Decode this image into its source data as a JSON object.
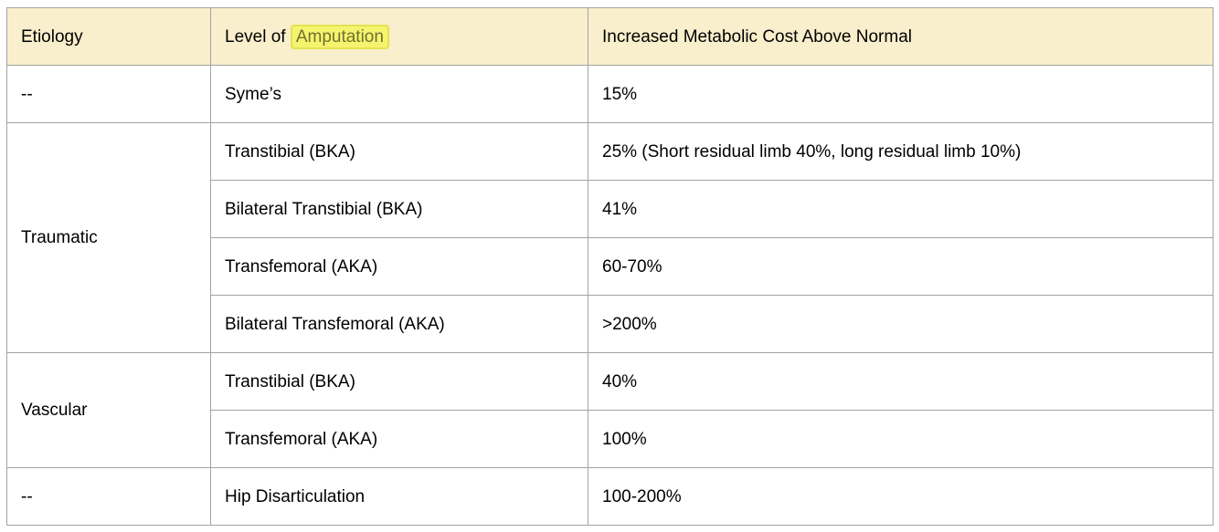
{
  "colors": {
    "background": "#ffffff",
    "header_bg": "#f9efcc",
    "table_border": "#a3a3a3",
    "text": "#000000",
    "highlight_bg": "#f6f46e",
    "highlight_border": "#e4e254",
    "highlight_text": "#6e7030"
  },
  "table": {
    "headers": {
      "etiology": "Etiology",
      "level_prefix": "Level of",
      "level_highlight": "Amputation",
      "cost": "Increased Metabolic Cost Above Normal"
    },
    "rows": [
      {
        "etiology": "--",
        "level": "Syme’s",
        "cost": "15%"
      },
      {
        "etiology": "Traumatic",
        "level": "Transtibial (BKA)",
        "cost": "25% (Short residual limb 40%, long residual limb 10%)"
      },
      {
        "level": "Bilateral Transtibial (BKA)",
        "cost": "41%"
      },
      {
        "level": "Transfemoral (AKA)",
        "cost": "60-70%"
      },
      {
        "level": "Bilateral Transfemoral (AKA)",
        "cost": ">200%"
      },
      {
        "etiology": "Vascular",
        "level": "Transtibial (BKA)",
        "cost": "40%"
      },
      {
        "level": "Transfemoral (AKA)",
        "cost": "100%"
      },
      {
        "etiology": "--",
        "level": "Hip Disarticulation",
        "cost": "100-200%"
      }
    ]
  }
}
